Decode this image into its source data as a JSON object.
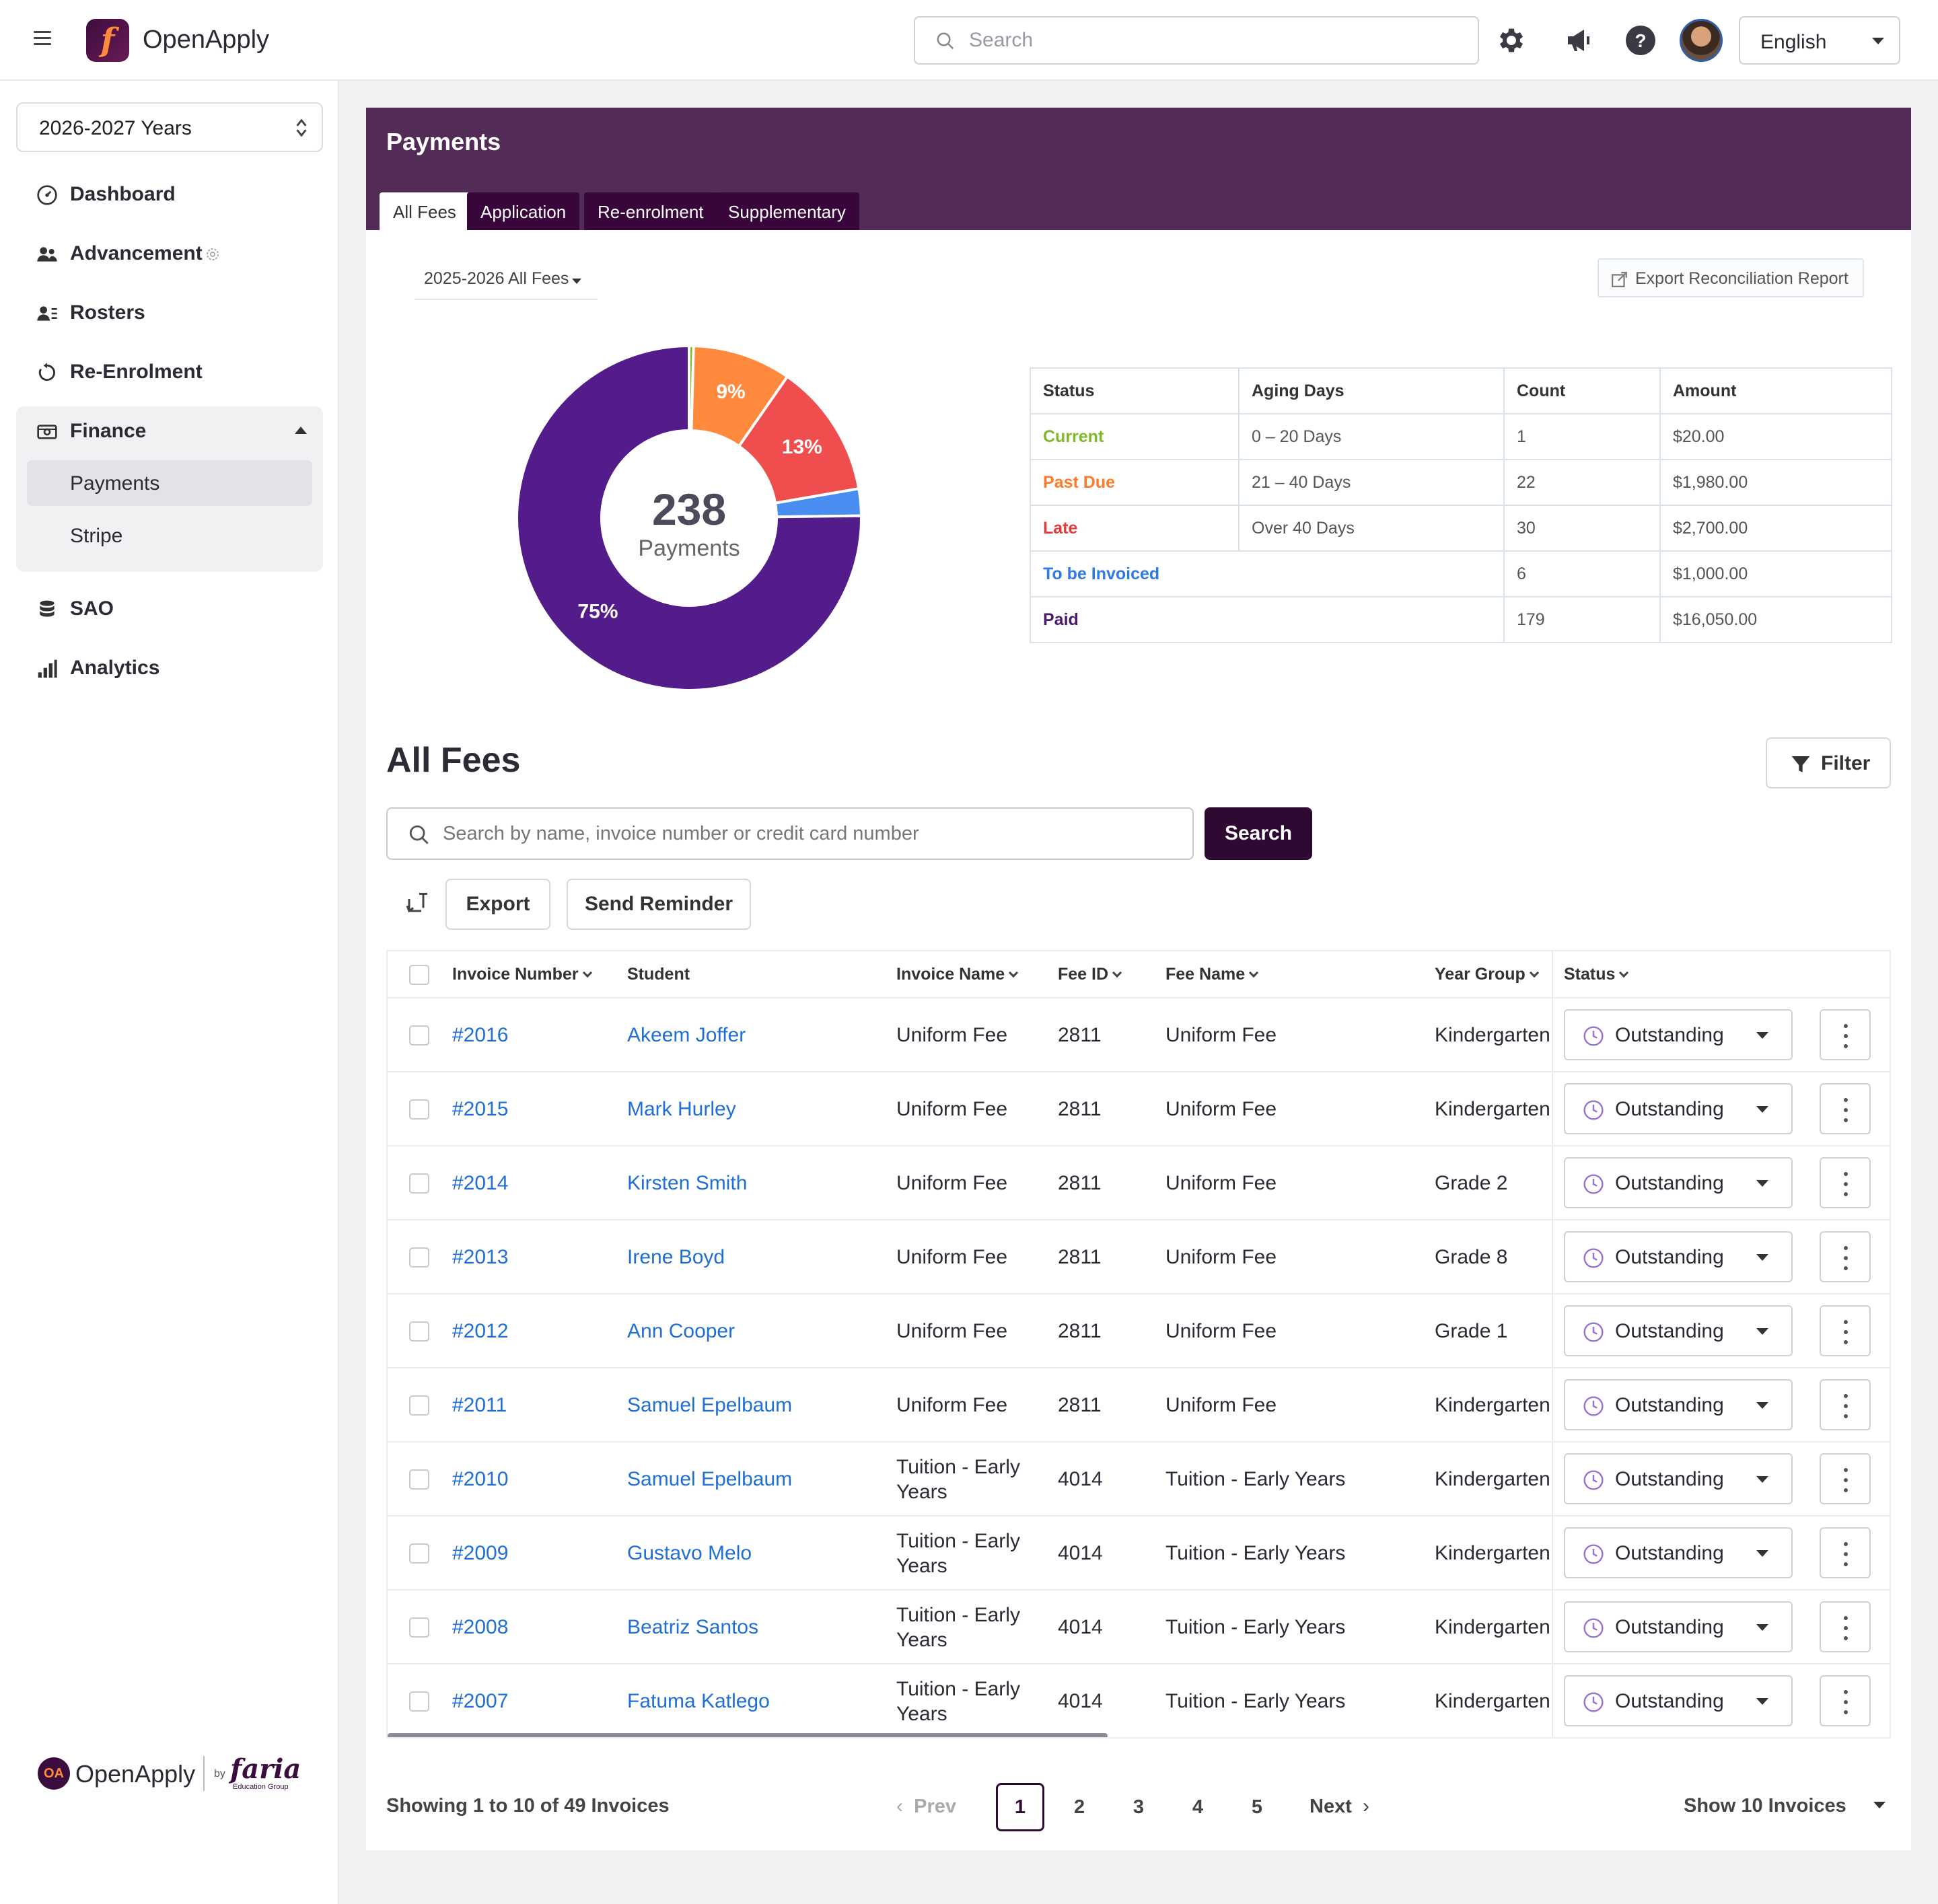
{
  "app": {
    "name": "OpenApply",
    "search_placeholder": "Search",
    "language": "English"
  },
  "sidebar": {
    "year": "2026-2027 Years",
    "items": [
      {
        "label": "Dashboard",
        "icon": "dashboard-icon"
      },
      {
        "label": "Advancement",
        "icon": "people-icon"
      },
      {
        "label": "Rosters",
        "icon": "roster-icon"
      },
      {
        "label": "Re-Enrolment",
        "icon": "refresh-icon"
      },
      {
        "label": "Finance",
        "icon": "finance-icon"
      },
      {
        "label": "SAO",
        "icon": "database-icon"
      },
      {
        "label": "Analytics",
        "icon": "analytics-icon"
      }
    ],
    "finance_sub": [
      "Payments",
      "Stripe"
    ],
    "footer": {
      "brand": "OpenApply",
      "by": "by",
      "partner": "faria",
      "partner_sub": "Education Group"
    }
  },
  "payments": {
    "title": "Payments",
    "tabs": [
      "All Fees",
      "Application",
      "Re-enrolment",
      "Supplementary"
    ],
    "fee_filter": "2025-2026 All Fees",
    "export_report": "Export Reconciliation Report",
    "total_count": "238",
    "total_label": "Payments"
  },
  "chart_data": {
    "type": "pie",
    "center_value": 238,
    "center_label": "Payments",
    "slices": [
      {
        "label": "Current",
        "value": 1,
        "color": "#7fb928",
        "pct_label": ""
      },
      {
        "label": "Past Due",
        "value": 22,
        "color": "#ff8a3d",
        "pct_label": "9%"
      },
      {
        "label": "Late",
        "value": 30,
        "color": "#f04e4e",
        "pct_label": "13%"
      },
      {
        "label": "To be Invoiced",
        "value": 6,
        "color": "#4a8df0",
        "pct_label": ""
      },
      {
        "label": "Paid",
        "value": 179,
        "color": "#541b8a",
        "pct_label": "75%"
      }
    ]
  },
  "aging_table": {
    "headers": [
      "Status",
      "Aging Days",
      "Count",
      "Amount"
    ],
    "rows": [
      {
        "status": "Current",
        "color": "#7fb928",
        "aging": "0 – 20 Days",
        "count": "1",
        "amount": "$20.00"
      },
      {
        "status": "Past Due",
        "color": "#ff7a29",
        "aging": "21 – 40 Days",
        "count": "22",
        "amount": "$1,980.00"
      },
      {
        "status": "Late",
        "color": "#e83a3a",
        "aging": "Over 40 Days",
        "count": "30",
        "amount": "$2,700.00"
      },
      {
        "status": "To be Invoiced",
        "color": "#2f7be3",
        "aging": "",
        "count": "6",
        "amount": "$1,000.00"
      },
      {
        "status": "Paid",
        "color": "#4b1a6e",
        "aging": "",
        "count": "179",
        "amount": "$16,050.00"
      }
    ]
  },
  "fees": {
    "title": "All Fees",
    "filter_label": "Filter",
    "search_placeholder": "Search by name, invoice number or credit card number",
    "search_button": "Search",
    "export_button": "Export",
    "reminder_button": "Send Reminder",
    "columns": [
      "Invoice Number",
      "Student",
      "Invoice Name",
      "Fee ID",
      "Fee Name",
      "Year Group",
      "Status"
    ],
    "rows": [
      {
        "invoice": "#2016",
        "student": "Akeem Joffer",
        "invoice_name": "Uniform Fee",
        "fee_id": "2811",
        "fee_name": "Uniform Fee",
        "year_group": "Kindergarten",
        "status": "Outstanding"
      },
      {
        "invoice": "#2015",
        "student": "Mark Hurley",
        "invoice_name": "Uniform Fee",
        "fee_id": "2811",
        "fee_name": "Uniform Fee",
        "year_group": "Kindergarten",
        "status": "Outstanding"
      },
      {
        "invoice": "#2014",
        "student": "Kirsten Smith",
        "invoice_name": "Uniform Fee",
        "fee_id": "2811",
        "fee_name": "Uniform Fee",
        "year_group": "Grade 2",
        "status": "Outstanding"
      },
      {
        "invoice": "#2013",
        "student": "Irene Boyd",
        "invoice_name": "Uniform Fee",
        "fee_id": "2811",
        "fee_name": "Uniform Fee",
        "year_group": "Grade 8",
        "status": "Outstanding"
      },
      {
        "invoice": "#2012",
        "student": "Ann Cooper",
        "invoice_name": "Uniform Fee",
        "fee_id": "2811",
        "fee_name": "Uniform Fee",
        "year_group": "Grade 1",
        "status": "Outstanding"
      },
      {
        "invoice": "#2011",
        "student": "Samuel Epelbaum",
        "invoice_name": "Uniform Fee",
        "fee_id": "2811",
        "fee_name": "Uniform Fee",
        "year_group": "Kindergarten",
        "status": "Outstanding"
      },
      {
        "invoice": "#2010",
        "student": "Samuel Epelbaum",
        "invoice_name_1": "Tuition - Early",
        "invoice_name_2": "Years",
        "fee_id": "4014",
        "fee_name": "Tuition - Early Years",
        "year_group": "Kindergarten",
        "status": "Outstanding"
      },
      {
        "invoice": "#2009",
        "student": "Gustavo Melo",
        "invoice_name_1": "Tuition - Early",
        "invoice_name_2": "Years",
        "fee_id": "4014",
        "fee_name": "Tuition - Early Years",
        "year_group": "Kindergarten",
        "status": "Outstanding"
      },
      {
        "invoice": "#2008",
        "student": "Beatriz Santos",
        "invoice_name_1": "Tuition - Early",
        "invoice_name_2": "Years",
        "fee_id": "4014",
        "fee_name": "Tuition - Early Years",
        "year_group": "Kindergarten",
        "status": "Outstanding"
      },
      {
        "invoice": "#2007",
        "student": "Fatuma Katlego",
        "invoice_name_1": "Tuition - Early",
        "invoice_name_2": "Years",
        "fee_id": "4014",
        "fee_name": "Tuition - Early Years",
        "year_group": "Kindergarten",
        "status": "Outstanding"
      }
    ]
  },
  "pagination": {
    "showing": "Showing 1 to 10 of 49 Invoices",
    "prev": "Prev",
    "next": "Next",
    "pages": [
      "1",
      "2",
      "3",
      "4",
      "5"
    ],
    "current": "1",
    "page_size": "Show 10 Invoices"
  }
}
